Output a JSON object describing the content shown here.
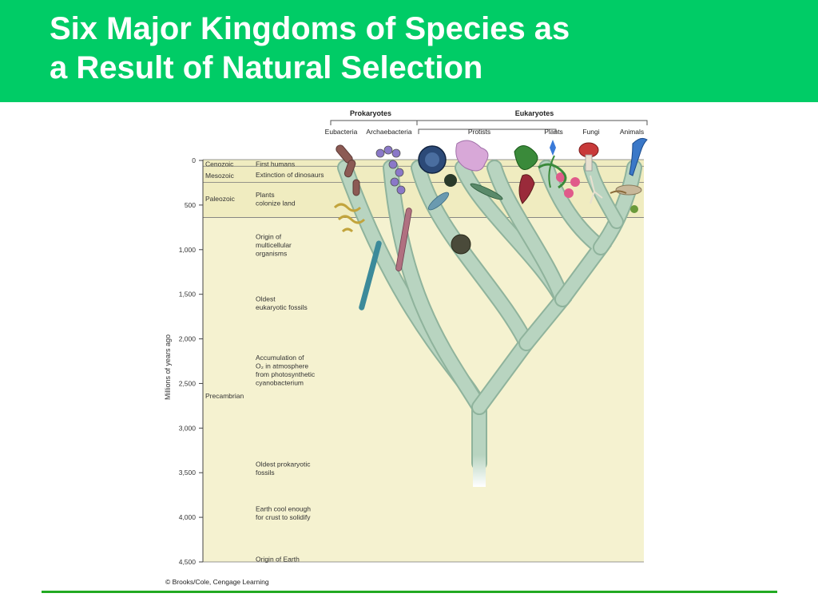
{
  "slide": {
    "title_line1": "Six Major Kingdoms of Species as",
    "title_line2": "a Result of Natural Selection"
  },
  "colors": {
    "header_bg": "#00cc66",
    "title_text": "#ffffff",
    "chart_bg": "#f5f2d0",
    "branch_fill": "#b8d4c0",
    "branch_edge": "#8fb39c",
    "rule": "#22aa22"
  },
  "figure": {
    "groups": {
      "prokaryotes": "Prokaryotes",
      "eukaryotes": "Eukaryotes"
    },
    "kingdoms": [
      "Eubacteria",
      "Archaebacteria",
      "Protists",
      "Plants",
      "Fungi",
      "Animals"
    ],
    "axis_label": "Millions of years ago",
    "ticks": [
      {
        "value": 0,
        "label": "0"
      },
      {
        "value": 500,
        "label": "500"
      },
      {
        "value": 1000,
        "label": "1,000"
      },
      {
        "value": 1500,
        "label": "1,500"
      },
      {
        "value": 2000,
        "label": "2,000"
      },
      {
        "value": 2500,
        "label": "2,500"
      },
      {
        "value": 3000,
        "label": "3,000"
      },
      {
        "value": 3500,
        "label": "3,500"
      },
      {
        "value": 4000,
        "label": "4,000"
      },
      {
        "value": 4500,
        "label": "4,500"
      }
    ],
    "eras": [
      {
        "name": "Cenozoic",
        "ma": 40
      },
      {
        "name": "Mesozoic",
        "ma": 170
      },
      {
        "name": "Paleozoic",
        "ma": 430
      },
      {
        "name": "Precambrian",
        "ma": 2640
      }
    ],
    "era_boundaries": [
      65,
      245,
      640
    ],
    "events": [
      {
        "lines": [
          "First humans"
        ],
        "ma": 40
      },
      {
        "lines": [
          "Extinction of dinosaurs"
        ],
        "ma": 160
      },
      {
        "lines": [
          "Plants",
          "colonize land"
        ],
        "ma": 430
      },
      {
        "lines": [
          "Origin of",
          "multicellular",
          "organisms"
        ],
        "ma": 950
      },
      {
        "lines": [
          "Oldest",
          "eukaryotic fossils"
        ],
        "ma": 1600
      },
      {
        "lines": [
          "Accumulation of",
          "O₂ in atmosphere",
          "from photosynthetic",
          "cyanobacterium"
        ],
        "ma": 2350
      },
      {
        "lines": [
          "Oldest prokaryotic",
          "fossils"
        ],
        "ma": 3450
      },
      {
        "lines": [
          "Earth cool enough",
          "for crust to solidify"
        ],
        "ma": 3950
      },
      {
        "lines": [
          "Origin of Earth"
        ],
        "ma": 4470
      }
    ],
    "credit": "© Brooks/Cole, Cengage Learning"
  }
}
